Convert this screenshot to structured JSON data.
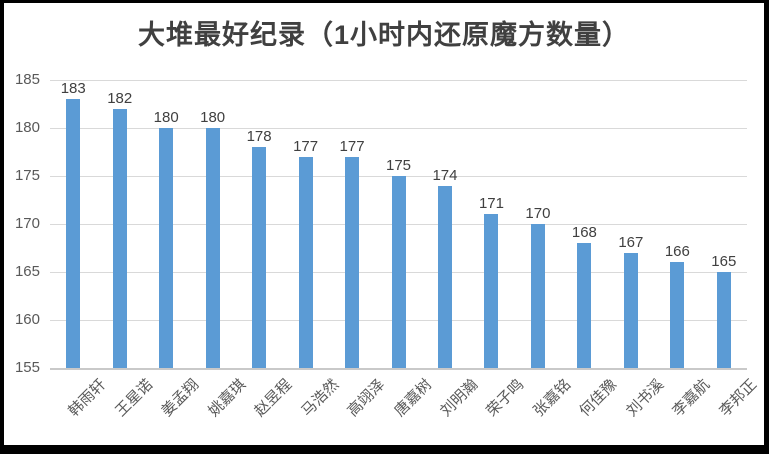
{
  "chart_data": {
    "type": "bar",
    "title": "大堆最好纪录（1小时内还原魔方数量）",
    "categories": [
      "韩雨轩",
      "王星诺",
      "姜孟翔",
      "姚嘉琪",
      "赵昱程",
      "马浩然",
      "高翊泽",
      "唐嘉树",
      "刘明瀚",
      "荣子鸣",
      "张嘉铭",
      "何佳豫",
      "刘书溪",
      "李嘉航",
      "李邦正"
    ],
    "values": [
      183,
      182,
      180,
      180,
      178,
      177,
      177,
      175,
      174,
      171,
      170,
      168,
      167,
      166,
      165
    ],
    "xlabel": "",
    "ylabel": "",
    "ylim": [
      155,
      185
    ],
    "yticks": [
      185,
      180,
      175,
      170,
      165,
      160,
      155
    ],
    "grid": "horizontal",
    "legend_position": "none",
    "data_labels_shown": true,
    "x_label_rotation_deg": 45,
    "bar_color": "#5B9BD5",
    "gridline_color": "#D9D9D9",
    "axis_line_color": "#C9C9C9",
    "title_color": "#404040",
    "tick_label_color": "#595959",
    "value_label_color": "#404040"
  }
}
